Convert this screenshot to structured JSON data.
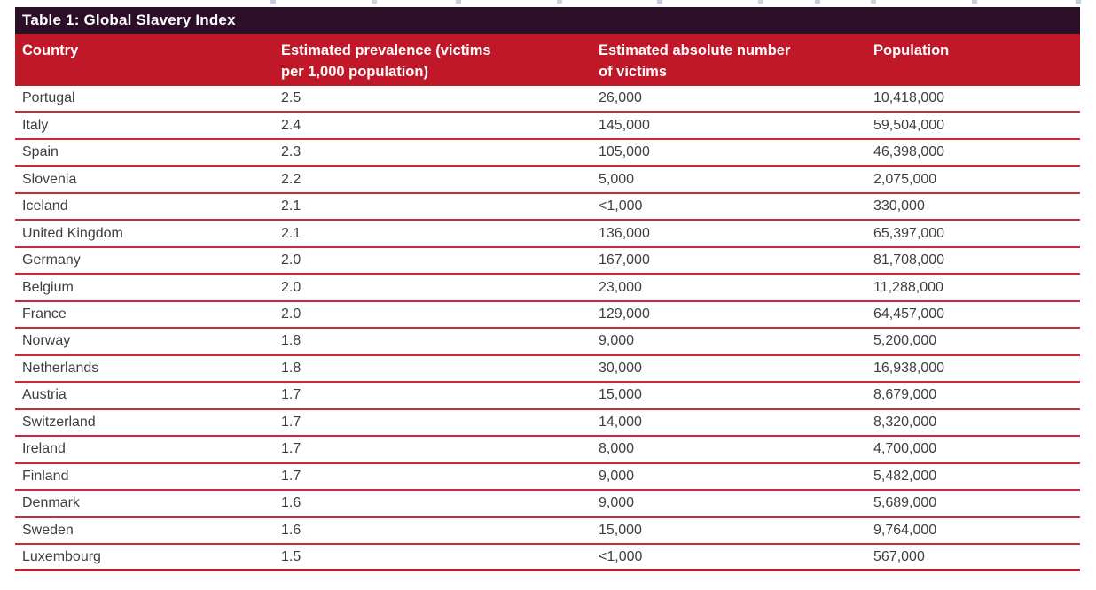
{
  "table": {
    "title": "Table 1: Global Slavery Index",
    "columns": [
      "Country",
      "Estimated prevalence (victims per 1,000 population)",
      "Estimated absolute number of victims",
      "Population"
    ],
    "rows": [
      [
        "Portugal",
        "2.5",
        "26,000",
        "10,418,000"
      ],
      [
        "Italy",
        "2.4",
        "145,000",
        "59,504,000"
      ],
      [
        "Spain",
        "2.3",
        "105,000",
        "46,398,000"
      ],
      [
        "Slovenia",
        "2.2",
        "5,000",
        "2,075,000"
      ],
      [
        "Iceland",
        "2.1",
        "<1,000",
        "330,000"
      ],
      [
        "United Kingdom",
        "2.1",
        "136,000",
        "65,397,000"
      ],
      [
        "Germany",
        "2.0",
        "167,000",
        "81,708,000"
      ],
      [
        "Belgium",
        "2.0",
        "23,000",
        "11,288,000"
      ],
      [
        "France",
        "2.0",
        "129,000",
        "64,457,000"
      ],
      [
        "Norway",
        "1.8",
        "9,000",
        "5,200,000"
      ],
      [
        "Netherlands",
        "1.8",
        "30,000",
        "16,938,000"
      ],
      [
        "Austria",
        "1.7",
        "15,000",
        "8,679,000"
      ],
      [
        "Switzerland",
        "1.7",
        "14,000",
        "8,320,000"
      ],
      [
        "Ireland",
        "1.7",
        "8,000",
        "4,700,000"
      ],
      [
        "Finland",
        "1.7",
        "9,000",
        "5,482,000"
      ],
      [
        "Denmark",
        "1.6",
        "9,000",
        "5,689,000"
      ],
      [
        "Sweden",
        "1.6",
        "15,000",
        "9,764,000"
      ],
      [
        "Luxembourg",
        "1.5",
        "<1,000",
        "567,000"
      ]
    ],
    "colors": {
      "title_bar": "#2d0e27",
      "header_background": "#c01828",
      "row_separator": "#cd2a38",
      "bottom_border": "#b91f2e",
      "body_text": "#3f3e3e",
      "header_text": "#ffffff"
    }
  }
}
